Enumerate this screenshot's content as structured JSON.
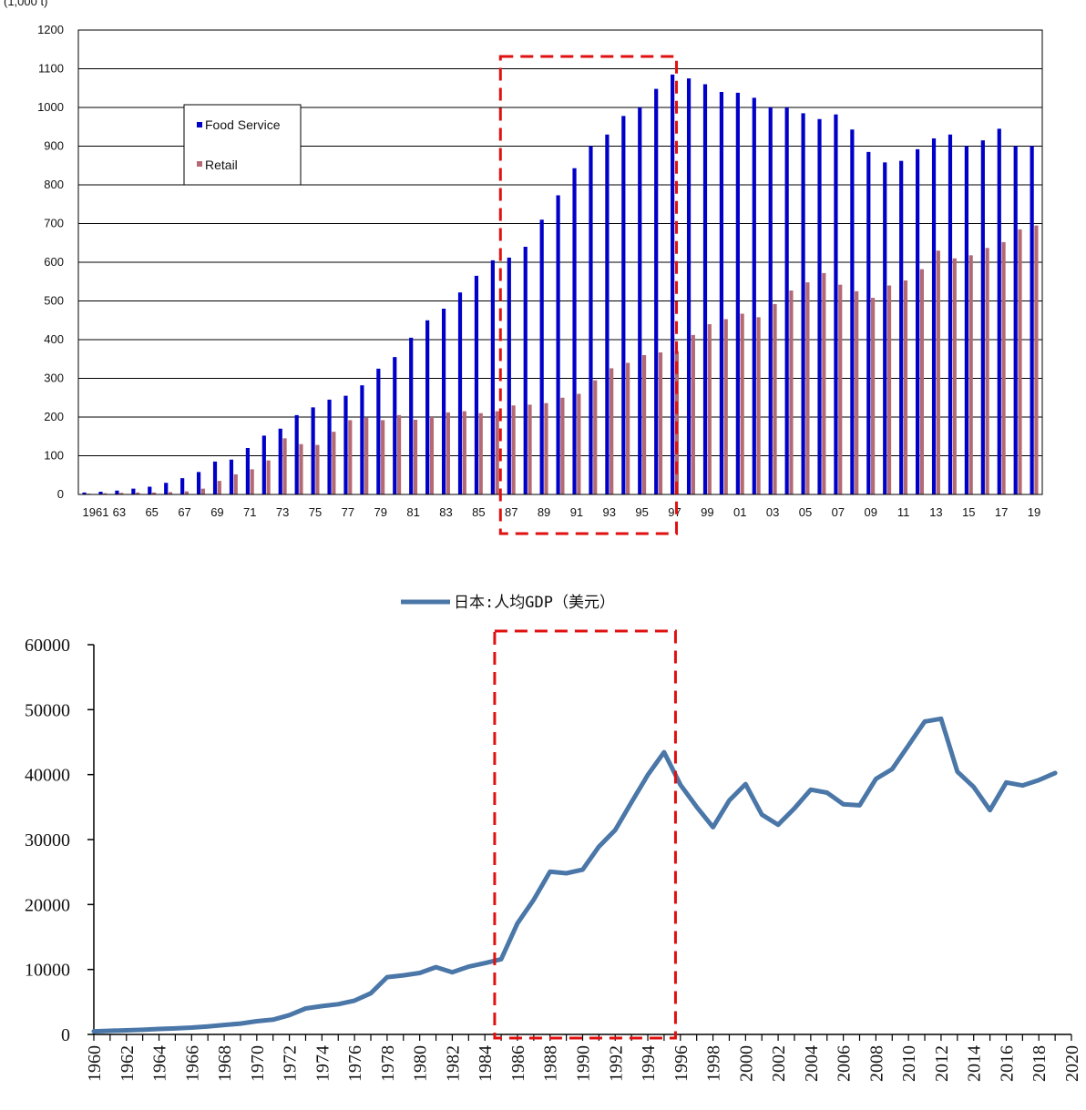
{
  "chart_data": [
    {
      "type": "bar",
      "ylabel": "(1,000 t)",
      "ylim": [
        0,
        1200
      ],
      "yticks": [
        0,
        100,
        200,
        300,
        400,
        500,
        600,
        700,
        800,
        900,
        1000,
        1100,
        1200
      ],
      "grid": true,
      "legend_position": "upper-left",
      "categories": [
        "1961",
        "62",
        "63",
        "64",
        "65",
        "66",
        "67",
        "68",
        "69",
        "70",
        "71",
        "72",
        "73",
        "74",
        "75",
        "76",
        "77",
        "78",
        "79",
        "80",
        "81",
        "82",
        "83",
        "84",
        "85",
        "86",
        "87",
        "88",
        "89",
        "90",
        "91",
        "92",
        "93",
        "94",
        "95",
        "96",
        "97",
        "98",
        "99",
        "00",
        "01",
        "02",
        "03",
        "04",
        "05",
        "06",
        "07",
        "08",
        "09",
        "10",
        "11",
        "12",
        "13",
        "14",
        "15",
        "16",
        "17",
        "18",
        "19"
      ],
      "tick_labels": [
        "1961",
        "63",
        "65",
        "67",
        "69",
        "71",
        "73",
        "75",
        "77",
        "79",
        "81",
        "83",
        "85",
        "87",
        "89",
        "91",
        "93",
        "95",
        "97",
        "99",
        "01",
        "03",
        "05",
        "07",
        "09",
        "11",
        "13",
        "15",
        "17",
        "19"
      ],
      "series": [
        {
          "name": "Food Service",
          "color": "#0000c8",
          "values": [
            5,
            7,
            10,
            15,
            20,
            30,
            42,
            58,
            85,
            90,
            120,
            152,
            170,
            205,
            225,
            245,
            255,
            282,
            325,
            355,
            405,
            450,
            480,
            522,
            565,
            605,
            612,
            640,
            710,
            773,
            843,
            900,
            930,
            978,
            1000,
            1048,
            1085,
            1075,
            1060,
            1040,
            1038,
            1025,
            1000,
            1000,
            985,
            970,
            982,
            943,
            885,
            858,
            862,
            892,
            920,
            930,
            900,
            915,
            945,
            900,
            900
          ]
        },
        {
          "name": "Retail",
          "color": "#b36a74",
          "values": [
            2,
            3,
            4,
            5,
            5,
            6,
            8,
            15,
            35,
            52,
            65,
            88,
            145,
            130,
            128,
            162,
            192,
            198,
            192,
            205,
            193,
            200,
            212,
            215,
            210,
            215,
            230,
            232,
            236,
            250,
            260,
            295,
            326,
            340,
            360,
            367,
            370,
            412,
            440,
            453,
            467,
            458,
            492,
            527,
            548,
            572,
            542,
            525,
            508,
            540,
            553,
            582,
            630,
            610,
            618,
            637,
            652,
            685,
            695
          ]
        }
      ],
      "annotation": "red dashed box: 1986–1997"
    },
    {
      "type": "line",
      "ylim": [
        0,
        60000
      ],
      "yticks": [
        0,
        10000,
        20000,
        30000,
        40000,
        50000,
        60000
      ],
      "xlim": [
        1960,
        2020
      ],
      "xticks": [
        1960,
        1962,
        1964,
        1966,
        1968,
        1970,
        1972,
        1974,
        1976,
        1978,
        1980,
        1982,
        1984,
        1986,
        1988,
        1990,
        1992,
        1994,
        1996,
        1998,
        2000,
        2002,
        2004,
        2006,
        2008,
        2010,
        2012,
        2014,
        2016,
        2018,
        2020
      ],
      "grid": false,
      "legend_position": "top-center",
      "series": [
        {
          "name": "日本:人均GDP（美元）",
          "color": "#4a77a8",
          "x": [
            1960,
            1961,
            1962,
            1963,
            1964,
            1965,
            1966,
            1967,
            1968,
            1969,
            1970,
            1971,
            1972,
            1973,
            1974,
            1975,
            1976,
            1977,
            1978,
            1979,
            1980,
            1981,
            1982,
            1983,
            1984,
            1985,
            1986,
            1987,
            1988,
            1989,
            1990,
            1991,
            1992,
            1993,
            1994,
            1995,
            1996,
            1997,
            1998,
            1999,
            2000,
            2001,
            2002,
            2003,
            2004,
            2005,
            2006,
            2007,
            2008,
            2009,
            2010,
            2011,
            2012,
            2013,
            2014,
            2015,
            2016,
            2017,
            2018,
            2019
          ],
          "values": [
            479,
            564,
            633,
            718,
            836,
            919,
            1058,
            1229,
            1451,
            1669,
            2038,
            2272,
            2967,
            3997,
            4354,
            4659,
            5197,
            6335,
            8821,
            9105,
            9463,
            10361,
            9578,
            10425,
            10979,
            11577,
            17113,
            20745,
            25051,
            24813,
            25359,
            28925,
            31465,
            35766,
            39934,
            43440,
            38437,
            35022,
            31903,
            36027,
            38532,
            33846,
            32289,
            34808,
            37689,
            37218,
            35434,
            35275,
            39339,
            40855,
            44508,
            48168,
            48603,
            40454,
            38109,
            34524,
            38794,
            38332,
            39159,
            40247
          ]
        }
      ],
      "annotation": "red dashed box: 1985–1996"
    }
  ]
}
